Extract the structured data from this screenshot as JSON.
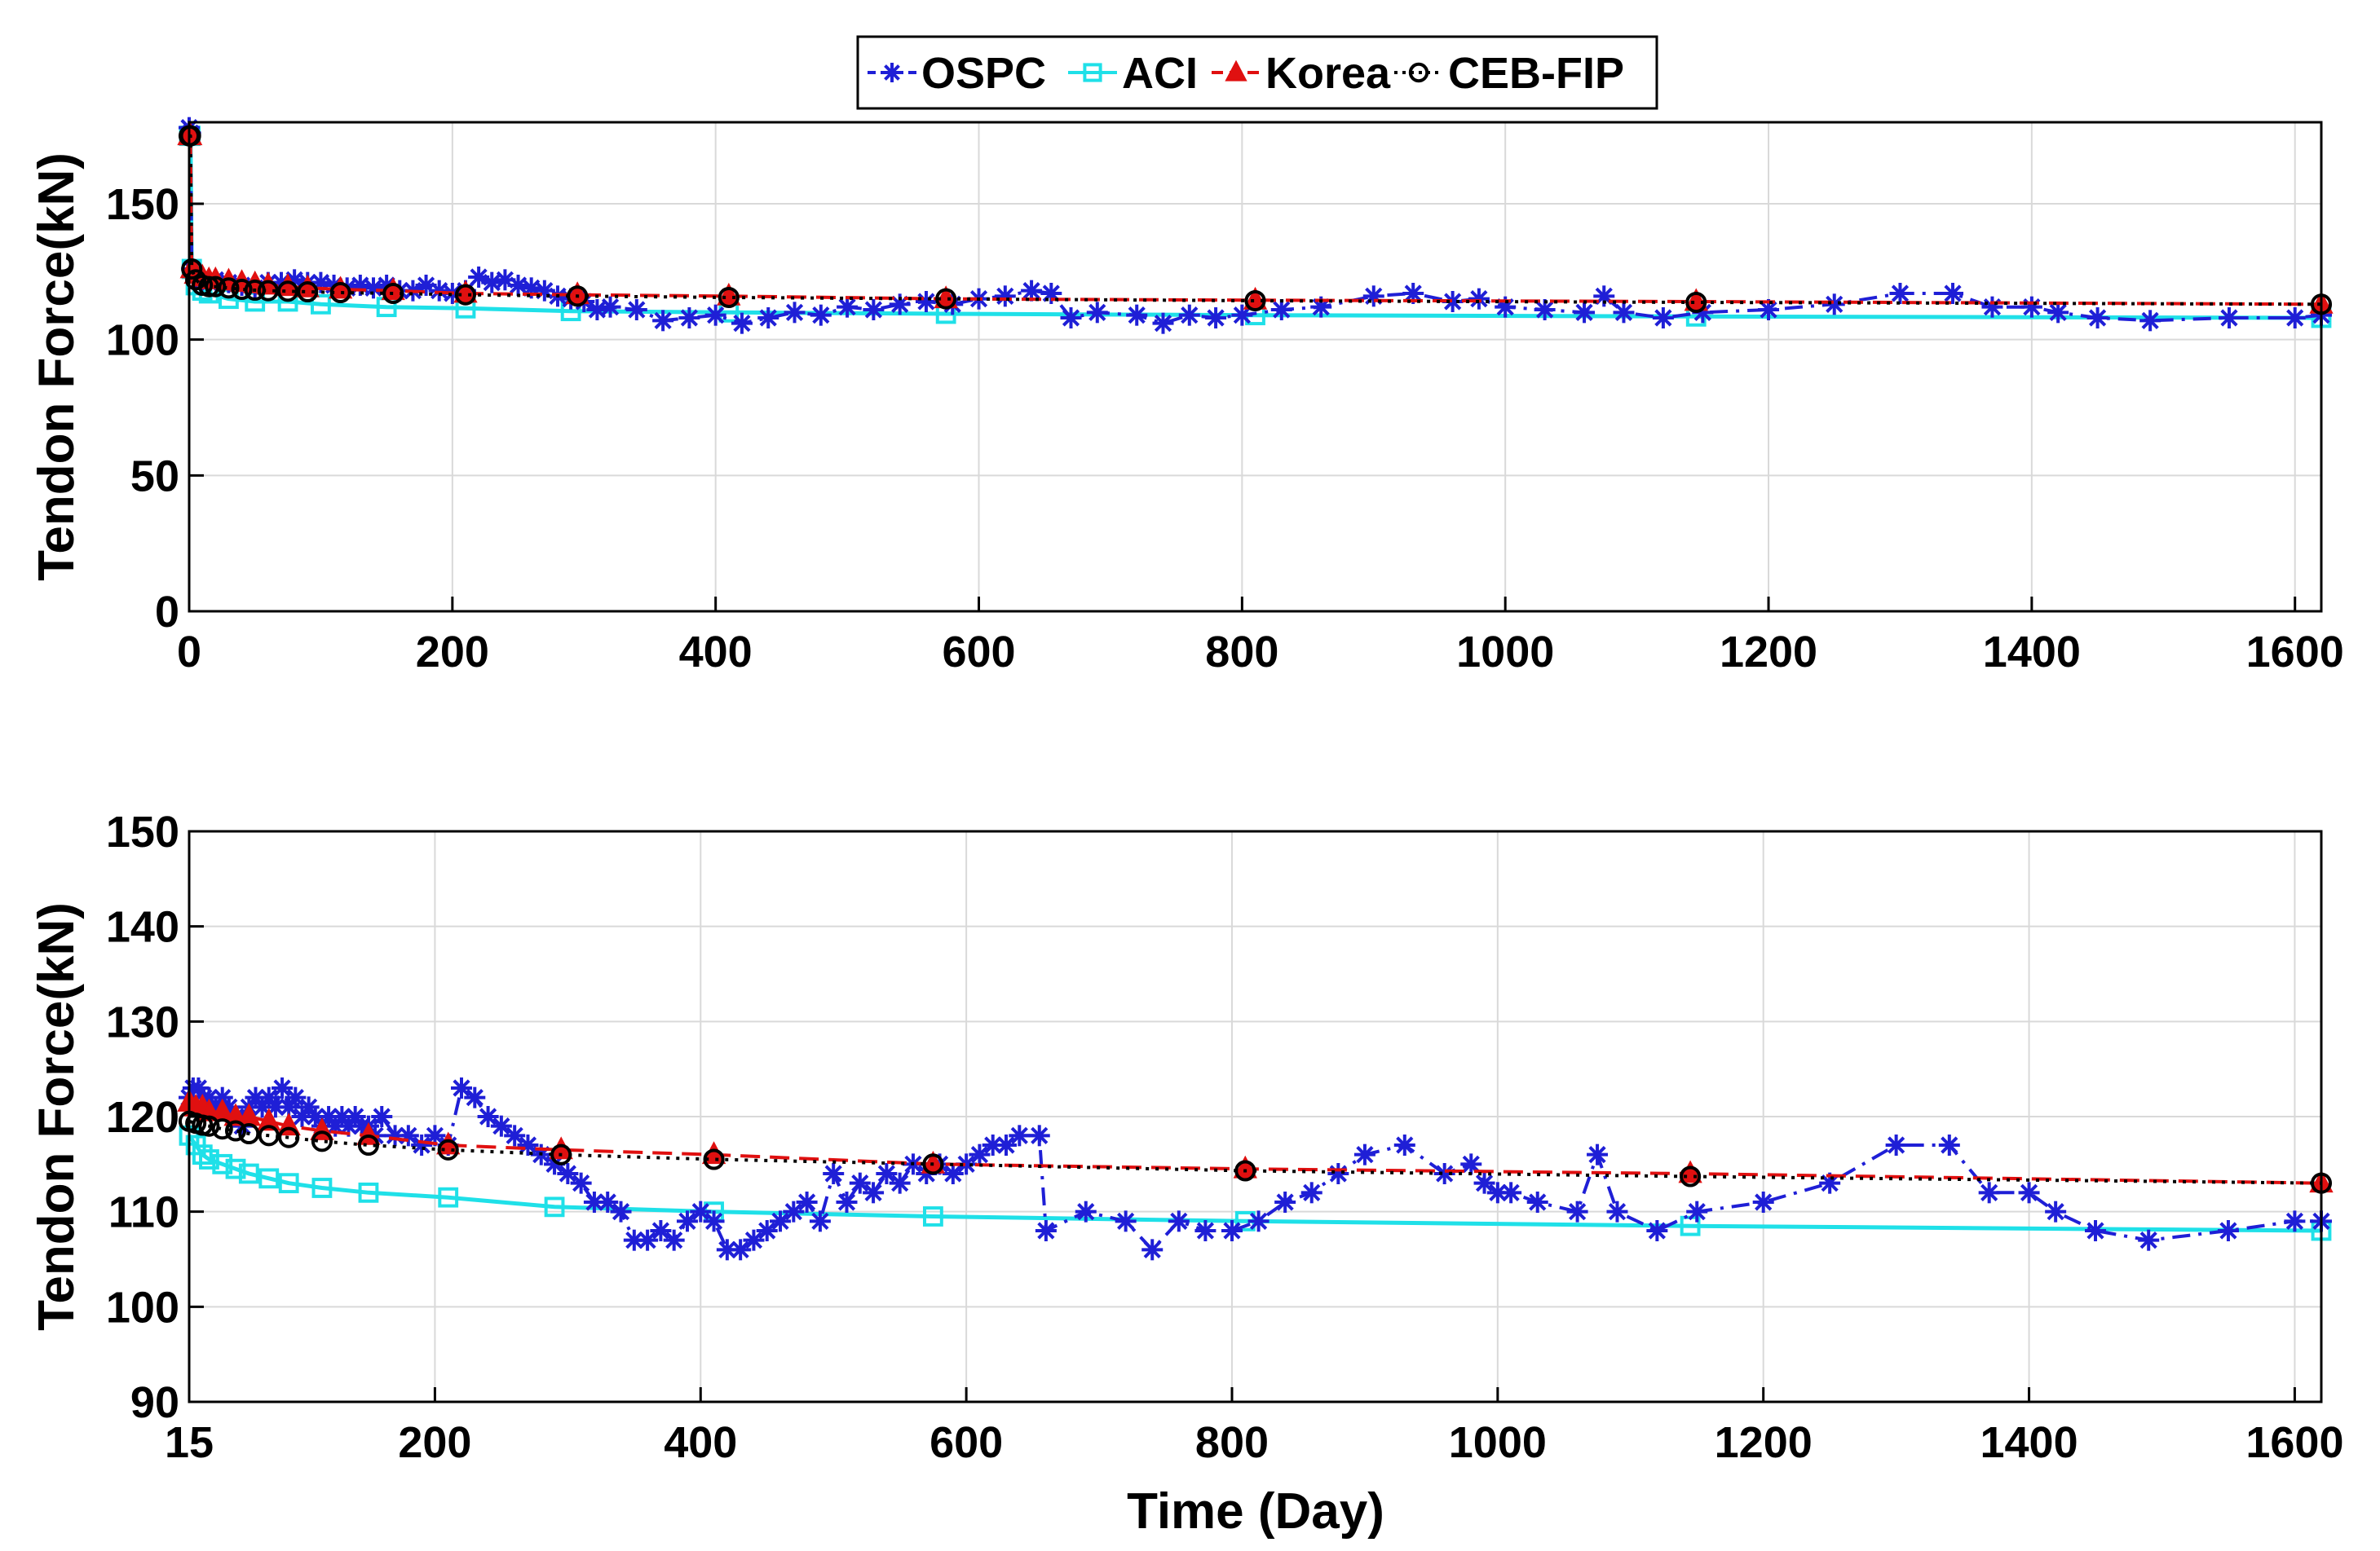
{
  "legend": {
    "entries": [
      {
        "label": "OSPC",
        "color": "#1f1fd6",
        "marker": "asterisk",
        "line": "dashdot"
      },
      {
        "label": "ACI",
        "color": "#1fe0e8",
        "marker": "square",
        "line": "solid"
      },
      {
        "label": "Korea",
        "color": "#e01010",
        "marker": "triangle",
        "line": "dashed"
      },
      {
        "label": "CEB-FIP",
        "color": "#000000",
        "marker": "circle",
        "line": "dotted"
      }
    ]
  },
  "chart_data": [
    {
      "type": "line",
      "ylabel": "Tendon Force(kN)",
      "xlabel": "",
      "xlim": [
        0,
        1620
      ],
      "ylim": [
        0,
        180
      ],
      "xticks": [
        0,
        200,
        400,
        600,
        800,
        1000,
        1200,
        1400,
        1600
      ],
      "yticks": [
        0,
        50,
        100,
        150
      ],
      "grid": true,
      "series": [
        {
          "name": "OSPC",
          "x": [
            0,
            1,
            2,
            5,
            10,
            15,
            20,
            30,
            40,
            50,
            60,
            70,
            80,
            90,
            100,
            110,
            120,
            130,
            140,
            150,
            160,
            170,
            180,
            190,
            200,
            210,
            220,
            230,
            240,
            250,
            260,
            270,
            280,
            290,
            300,
            310,
            320,
            340,
            360,
            380,
            400,
            420,
            440,
            460,
            480,
            500,
            520,
            540,
            560,
            580,
            600,
            620,
            640,
            655,
            670,
            690,
            720,
            740,
            760,
            780,
            800,
            830,
            860,
            900,
            930,
            960,
            980,
            1000,
            1030,
            1060,
            1075,
            1090,
            1120,
            1150,
            1200,
            1250,
            1300,
            1340,
            1370,
            1400,
            1420,
            1450,
            1490,
            1550,
            1600,
            1620
          ],
          "y": [
            178,
            176,
            126,
            124,
            122,
            122,
            122,
            121,
            120,
            119,
            121,
            121,
            122,
            121,
            121,
            120,
            119,
            120,
            119,
            120,
            118,
            118,
            120,
            118,
            117,
            118,
            123,
            121,
            122,
            120,
            119,
            118,
            116,
            115,
            114,
            111,
            112,
            111,
            107,
            108,
            109,
            106,
            108,
            110,
            109,
            112,
            111,
            113,
            114,
            113,
            115,
            116,
            118,
            117,
            108,
            110,
            109,
            106,
            109,
            108,
            109,
            111,
            112,
            116,
            117,
            114,
            115,
            112,
            111,
            110,
            116,
            110,
            108,
            110,
            111,
            113,
            117,
            117,
            112,
            112,
            110,
            108,
            107,
            108,
            108,
            109
          ]
        },
        {
          "name": "ACI",
          "x": [
            0,
            1,
            2,
            5,
            10,
            15,
            30,
            50,
            75,
            100,
            150,
            210,
            290,
            410,
            575,
            810,
            1145,
            1620
          ],
          "y": [
            175,
            175,
            126,
            120,
            118,
            117,
            115,
            114,
            114,
            113,
            112,
            111.5,
            110.5,
            110,
            109.5,
            109,
            108.5,
            108
          ]
        },
        {
          "name": "Korea",
          "x": [
            0,
            1,
            2,
            5,
            10,
            15,
            20,
            30,
            40,
            50,
            60,
            75,
            90,
            115,
            155,
            210,
            295,
            410,
            575,
            810,
            1145,
            1620
          ],
          "y": [
            175,
            175,
            126,
            124,
            123,
            122,
            122,
            121.5,
            121,
            120.5,
            120,
            119.5,
            119,
            118.5,
            118,
            117,
            116.5,
            116,
            115,
            114.5,
            114,
            113
          ]
        },
        {
          "name": "CEB-FIP",
          "x": [
            0,
            1,
            2,
            5,
            10,
            15,
            20,
            30,
            40,
            50,
            60,
            75,
            90,
            115,
            155,
            210,
            295,
            410,
            575,
            810,
            1145,
            1620
          ],
          "y": [
            175,
            175,
            126,
            122,
            120,
            119.5,
            119.5,
            119,
            118.5,
            118.2,
            118,
            117.8,
            117.6,
            117.3,
            117,
            116.5,
            116,
            115.5,
            115,
            114.3,
            113.7,
            113
          ]
        }
      ]
    },
    {
      "type": "line",
      "ylabel": "Tendon Force(kN)",
      "xlabel": "Time (Day)",
      "xlim": [
        15,
        1620
      ],
      "ylim": [
        90,
        150
      ],
      "xticks": [
        15,
        200,
        400,
        600,
        800,
        1000,
        1200,
        1400,
        1600
      ],
      "yticks": [
        90,
        100,
        110,
        120,
        130,
        140,
        150
      ],
      "grid": true,
      "series": [
        {
          "name": "OSPC",
          "x": [
            15,
            18,
            22,
            26,
            30,
            35,
            40,
            45,
            50,
            55,
            60,
            65,
            70,
            75,
            80,
            85,
            90,
            95,
            100,
            105,
            110,
            115,
            120,
            125,
            130,
            135,
            140,
            145,
            150,
            155,
            160,
            170,
            180,
            190,
            200,
            210,
            220,
            230,
            240,
            250,
            260,
            270,
            280,
            290,
            300,
            310,
            320,
            330,
            340,
            350,
            360,
            370,
            380,
            390,
            400,
            410,
            420,
            430,
            440,
            450,
            460,
            470,
            480,
            490,
            500,
            510,
            520,
            530,
            540,
            550,
            560,
            570,
            580,
            590,
            600,
            610,
            620,
            630,
            640,
            655,
            660,
            690,
            720,
            740,
            760,
            780,
            800,
            820,
            840,
            860,
            880,
            900,
            930,
            960,
            980,
            990,
            1000,
            1010,
            1030,
            1060,
            1075,
            1090,
            1120,
            1150,
            1200,
            1250,
            1300,
            1340,
            1370,
            1400,
            1420,
            1450,
            1490,
            1550,
            1600,
            1620
          ],
          "y": [
            122,
            123,
            123,
            122,
            122,
            121,
            122,
            121,
            120,
            119,
            121,
            122,
            121,
            122,
            121,
            123,
            121,
            122,
            120,
            121,
            120,
            119,
            120,
            119,
            120,
            119,
            120,
            119,
            119,
            118,
            120,
            118,
            118,
            117,
            118,
            117,
            123,
            122,
            120,
            119,
            118,
            117,
            116,
            115,
            114,
            113,
            111,
            111,
            110,
            107,
            107,
            108,
            107,
            109,
            110,
            109,
            106,
            106,
            107,
            108,
            109,
            110,
            111,
            109,
            114,
            111,
            113,
            112,
            114,
            113,
            115,
            114,
            115,
            114,
            115,
            116,
            117,
            117,
            118,
            118,
            108,
            110,
            109,
            106,
            109,
            108,
            108,
            109,
            111,
            112,
            114,
            116,
            117,
            114,
            115,
            113,
            112,
            112,
            111,
            110,
            116,
            110,
            108,
            110,
            111,
            113,
            117,
            117,
            112,
            112,
            110,
            108,
            107,
            108,
            109,
            109
          ]
        },
        {
          "name": "ACI",
          "x": [
            15,
            20,
            25,
            30,
            40,
            50,
            60,
            75,
            90,
            115,
            150,
            210,
            290,
            410,
            575,
            810,
            1145,
            1620
          ],
          "y": [
            118,
            117,
            116,
            115.5,
            115,
            114.5,
            114,
            113.5,
            113,
            112.5,
            112,
            111.5,
            110.5,
            110,
            109.5,
            109,
            108.5,
            108
          ]
        },
        {
          "name": "Korea",
          "x": [
            15,
            20,
            25,
            30,
            40,
            50,
            60,
            75,
            90,
            115,
            150,
            210,
            295,
            410,
            575,
            810,
            1145,
            1620
          ],
          "y": [
            121.5,
            121,
            121,
            120.5,
            120.5,
            120,
            120,
            119.5,
            119,
            118.5,
            118,
            117,
            116.5,
            116,
            115,
            114.5,
            114,
            113
          ]
        },
        {
          "name": "CEB-FIP",
          "x": [
            15,
            20,
            25,
            30,
            40,
            50,
            60,
            75,
            90,
            115,
            150,
            210,
            295,
            410,
            575,
            810,
            1145,
            1620
          ],
          "y": [
            119.5,
            119.3,
            119.1,
            119,
            118.7,
            118.5,
            118.2,
            118,
            117.8,
            117.4,
            117,
            116.5,
            116,
            115.5,
            115,
            114.3,
            113.7,
            113
          ]
        }
      ]
    }
  ]
}
